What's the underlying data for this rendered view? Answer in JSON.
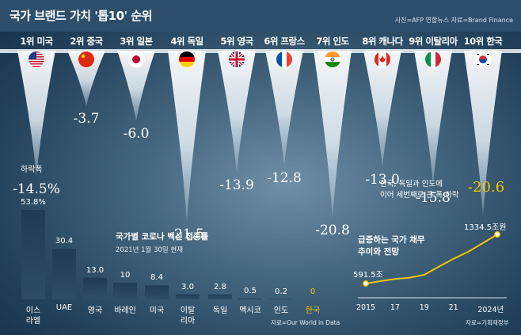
{
  "header": {
    "title": "국가 브랜드 가치 '톱10' 순위",
    "credit": "사진=AFP 연합뉴스  자료=Brand Finance"
  },
  "chart_data": [
    {
      "type": "bar",
      "title": "국가 브랜드 가치 '톱10' 순위",
      "categories": [
        "미국",
        "중국",
        "일본",
        "독일",
        "영국",
        "프랑스",
        "인도",
        "캐나다",
        "이탈리아",
        "한국"
      ],
      "ranks": [
        "1위 미국",
        "2위 중국",
        "3위 일본",
        "4위 독일",
        "5위 영국",
        "6위 프랑스",
        "7위 인도",
        "8위 캐나다",
        "9위 이탈리아",
        "10위 한국"
      ],
      "values": [
        -14.5,
        -3.7,
        -6.0,
        -21.5,
        -13.9,
        -12.8,
        -20.8,
        -13.0,
        -15.8,
        -20.6
      ],
      "value_labels": [
        "-14.5%",
        "-3.7",
        "-6.0",
        "-21.5",
        "-13.9",
        "-12.8",
        "-20.8",
        "-13.0",
        "-15.8",
        "-20.6"
      ],
      "ylabel": "하락폭",
      "highlight": "한국",
      "annotation": [
        "한국, 독일과 인도에",
        "이어 세번째로 큰 폭 하락"
      ],
      "flags": [
        "us-flag-icon",
        "china-flag-icon",
        "japan-flag-icon",
        "germany-flag-icon",
        "uk-flag-icon",
        "france-flag-icon",
        "india-flag-icon",
        "canada-flag-icon",
        "italy-flag-icon",
        "korea-flag-icon"
      ]
    },
    {
      "type": "bar",
      "title": "국가별 코로나 백신 접종률",
      "subtitle": "2021년 1월 30일 현재",
      "categories": [
        "이스라엘",
        "UAE",
        "영국",
        "바레인",
        "미국",
        "이탈리아",
        "독일",
        "멕시코",
        "인도",
        "한국"
      ],
      "category_lines": [
        [
          "이스",
          "라엘"
        ],
        [
          "UAE"
        ],
        [
          "영국"
        ],
        [
          "바레인"
        ],
        [
          "미국"
        ],
        [
          "이탈",
          "리아"
        ],
        [
          "독일"
        ],
        [
          "멕시코"
        ],
        [
          "인도"
        ],
        [
          "한국"
        ]
      ],
      "values": [
        53.8,
        30.4,
        13.0,
        10,
        8.4,
        3.0,
        2.8,
        0.5,
        0.2,
        0
      ],
      "value_labels": [
        "53.8%",
        "30.4",
        "13.0",
        "10",
        "8.4",
        "3.0",
        "2.8",
        "0.5",
        "0.2",
        "0"
      ],
      "highlight": "한국",
      "source": "자료=Our World in Data"
    },
    {
      "type": "line",
      "title": "급증하는 국가 채무 추이와 전망",
      "title_lines": [
        "급증하는 국가 채무",
        "추이와 전망"
      ],
      "x": [
        2015,
        2016,
        2017,
        2018,
        2019,
        2020,
        2021,
        2022,
        2023,
        2024
      ],
      "values": [
        591.5,
        626.9,
        660.2,
        680.5,
        723.2,
        846.9,
        965.3,
        1070.3,
        1201.2,
        1334.5
      ],
      "x_ticks": [
        "2015",
        "17",
        "19",
        "21",
        "2024년"
      ],
      "labels": {
        "start": "591.5조",
        "end": "1334.5조원"
      },
      "source": "자료=기획재정부"
    }
  ],
  "colors": {
    "header_bg": "#2e4f6c",
    "highlight": "#f5c400",
    "bar": "#233f58",
    "line": "#f5c400"
  }
}
